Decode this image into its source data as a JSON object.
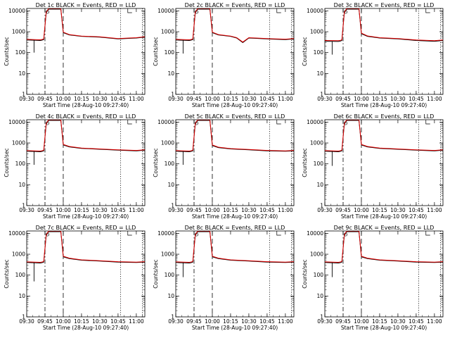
{
  "chart_data": {
    "type": "line",
    "layout": "3x3 grid of line panels",
    "x_tick_labels": [
      "09:30",
      "09:45",
      "10:00",
      "10:15",
      "10:30",
      "10:45",
      "11:00"
    ],
    "x_tick_hours": [
      9.5,
      9.75,
      10.0,
      10.25,
      10.5,
      10.75,
      11.0
    ],
    "xlim": [
      "09:30",
      "11:07"
    ],
    "xlabel": "Start Time (28-Aug-10 09:27:40)",
    "ylabel": "Counts/sec",
    "yscale": "log",
    "ylim": [
      1,
      13000
    ],
    "y_tick_labels": [
      "1",
      "10",
      "100",
      "1000",
      "10000"
    ],
    "grid": false,
    "series_legend_text": "BLACK = Events, RED = LLD",
    "series_colors": {
      "events": "#000000",
      "lld": "#e00000"
    },
    "vlines": [
      {
        "x": "09:45",
        "style": "dash-dot"
      },
      {
        "x": "10:00",
        "style": "dashed"
      },
      {
        "x": "10:47",
        "style": "dotted"
      },
      {
        "x": "11:05",
        "style": "dotted"
      }
    ],
    "panels": [
      {
        "title": "Det 1c BLACK = Events, RED = LLD",
        "x": [
          "09:30",
          "09:41",
          "09:42",
          "09:43",
          "09:44",
          "09:46",
          "09:48",
          "09:50",
          "09:55",
          "09:58",
          "10:00",
          "10:05",
          "10:15",
          "10:30",
          "10:45",
          "11:00",
          "11:07"
        ],
        "events": [
          400,
          380,
          390,
          400,
          420,
          8000,
          12000,
          12000,
          12000,
          12000,
          900,
          700,
          600,
          550,
          450,
          500,
          550
        ],
        "lld": [
          430,
          410,
          420,
          430,
          450,
          8500,
          13000,
          13000,
          13000,
          13000,
          950,
          730,
          620,
          570,
          470,
          520,
          570
        ],
        "dip": {
          "x": "09:36",
          "value": 100
        }
      },
      {
        "title": "Det 2c BLACK = Events, RED = LLD",
        "x": [
          "09:30",
          "09:41",
          "09:42",
          "09:43",
          "09:44",
          "09:46",
          "09:48",
          "09:50",
          "09:55",
          "09:58",
          "10:00",
          "10:05",
          "10:15",
          "10:20",
          "10:25",
          "10:30",
          "10:45",
          "11:00",
          "11:07"
        ],
        "events": [
          400,
          380,
          390,
          400,
          420,
          8000,
          12000,
          12000,
          12000,
          12000,
          900,
          700,
          600,
          500,
          300,
          500,
          450,
          420,
          450
        ],
        "lld": [
          430,
          410,
          420,
          430,
          450,
          8500,
          13000,
          13000,
          13000,
          13000,
          950,
          730,
          620,
          520,
          320,
          520,
          470,
          440,
          470
        ],
        "dip": {
          "x": "09:36",
          "value": 90
        }
      },
      {
        "title": "Det 3c BLACK = Events, RED = LLD",
        "x": [
          "09:30",
          "09:41",
          "09:42",
          "09:43",
          "09:44",
          "09:46",
          "09:48",
          "09:50",
          "09:55",
          "09:58",
          "10:00",
          "10:05",
          "10:15",
          "10:30",
          "10:45",
          "11:00",
          "11:07"
        ],
        "events": [
          350,
          340,
          350,
          360,
          380,
          8000,
          12000,
          12000,
          12000,
          12000,
          800,
          600,
          500,
          450,
          380,
          350,
          380
        ],
        "lld": [
          380,
          370,
          380,
          390,
          410,
          8500,
          13000,
          13000,
          13000,
          13000,
          850,
          630,
          520,
          470,
          400,
          370,
          400
        ],
        "dip": {
          "x": "09:36",
          "value": 80
        }
      },
      {
        "title": "Det 4c BLACK = Events, RED = LLD",
        "x": [
          "09:30",
          "09:41",
          "09:42",
          "09:43",
          "09:44",
          "09:46",
          "09:48",
          "09:50",
          "09:55",
          "09:58",
          "10:00",
          "10:05",
          "10:15",
          "10:30",
          "10:45",
          "11:00",
          "11:07"
        ],
        "events": [
          400,
          380,
          390,
          400,
          420,
          8000,
          12000,
          12000,
          12000,
          12000,
          800,
          650,
          550,
          500,
          450,
          420,
          450
        ],
        "lld": [
          430,
          410,
          420,
          430,
          450,
          8500,
          13000,
          13000,
          13000,
          13000,
          850,
          680,
          570,
          520,
          470,
          440,
          470
        ],
        "dip": {
          "x": "09:36",
          "value": 90
        }
      },
      {
        "title": "Det 5c BLACK = Events, RED = LLD",
        "x": [
          "09:30",
          "09:41",
          "09:42",
          "09:43",
          "09:44",
          "09:46",
          "09:48",
          "09:50",
          "09:55",
          "09:58",
          "10:00",
          "10:05",
          "10:15",
          "10:30",
          "10:45",
          "11:00",
          "11:07"
        ],
        "events": [
          400,
          380,
          390,
          400,
          420,
          8000,
          12000,
          12000,
          12000,
          12000,
          750,
          600,
          520,
          470,
          420,
          400,
          420
        ],
        "lld": [
          430,
          410,
          420,
          430,
          450,
          8500,
          13000,
          13000,
          13000,
          13000,
          800,
          630,
          540,
          490,
          440,
          420,
          440
        ],
        "dip": {
          "x": "09:36",
          "value": 90
        }
      },
      {
        "title": "Det 6c BLACK = Events, RED = LLD",
        "x": [
          "09:30",
          "09:41",
          "09:42",
          "09:43",
          "09:44",
          "09:46",
          "09:48",
          "09:50",
          "09:55",
          "09:58",
          "10:00",
          "10:05",
          "10:15",
          "10:30",
          "10:45",
          "11:00",
          "11:07"
        ],
        "events": [
          400,
          380,
          390,
          400,
          420,
          8000,
          12000,
          12000,
          12000,
          12000,
          800,
          650,
          550,
          500,
          450,
          420,
          450
        ],
        "lld": [
          430,
          410,
          420,
          430,
          450,
          8500,
          13000,
          13000,
          13000,
          13000,
          850,
          680,
          570,
          520,
          470,
          440,
          470
        ],
        "dip": {
          "x": "09:36",
          "value": 80
        }
      },
      {
        "title": "Det 7c BLACK = Events, RED = LLD",
        "x": [
          "09:30",
          "09:41",
          "09:42",
          "09:43",
          "09:44",
          "09:46",
          "09:48",
          "09:50",
          "09:55",
          "09:58",
          "10:00",
          "10:05",
          "10:15",
          "10:30",
          "10:45",
          "11:00",
          "11:07"
        ],
        "events": [
          400,
          380,
          390,
          400,
          420,
          8000,
          12000,
          12000,
          12000,
          12000,
          750,
          620,
          520,
          470,
          420,
          400,
          420
        ],
        "lld": [
          430,
          410,
          420,
          430,
          450,
          8500,
          13000,
          13000,
          13000,
          13000,
          800,
          650,
          540,
          490,
          440,
          420,
          440
        ],
        "dip": {
          "x": "09:36",
          "value": 50
        }
      },
      {
        "title": "Det 8c BLACK = Events, RED = LLD",
        "x": [
          "09:30",
          "09:41",
          "09:42",
          "09:43",
          "09:44",
          "09:46",
          "09:48",
          "09:50",
          "09:55",
          "09:58",
          "10:00",
          "10:05",
          "10:15",
          "10:30",
          "10:45",
          "11:00",
          "11:07"
        ],
        "events": [
          400,
          380,
          390,
          400,
          420,
          8000,
          12000,
          12000,
          12000,
          12000,
          750,
          620,
          520,
          470,
          420,
          400,
          420
        ],
        "lld": [
          430,
          410,
          420,
          430,
          450,
          8500,
          13000,
          13000,
          13000,
          13000,
          800,
          650,
          540,
          490,
          440,
          420,
          440
        ],
        "dip": {
          "x": "09:36",
          "value": 80
        }
      },
      {
        "title": "Det 9c BLACK = Events, RED = LLD",
        "x": [
          "09:30",
          "09:41",
          "09:42",
          "09:43",
          "09:44",
          "09:46",
          "09:48",
          "09:50",
          "09:55",
          "09:58",
          "10:00",
          "10:05",
          "10:15",
          "10:30",
          "10:45",
          "11:00",
          "11:07"
        ],
        "events": [
          400,
          380,
          390,
          400,
          420,
          8000,
          12000,
          12000,
          12000,
          12000,
          750,
          620,
          520,
          470,
          420,
          400,
          420
        ],
        "lld": [
          430,
          410,
          420,
          430,
          450,
          8500,
          13000,
          13000,
          13000,
          13000,
          800,
          650,
          540,
          490,
          440,
          420,
          440
        ],
        "dip": {
          "x": "09:36",
          "value": 80
        }
      }
    ]
  }
}
